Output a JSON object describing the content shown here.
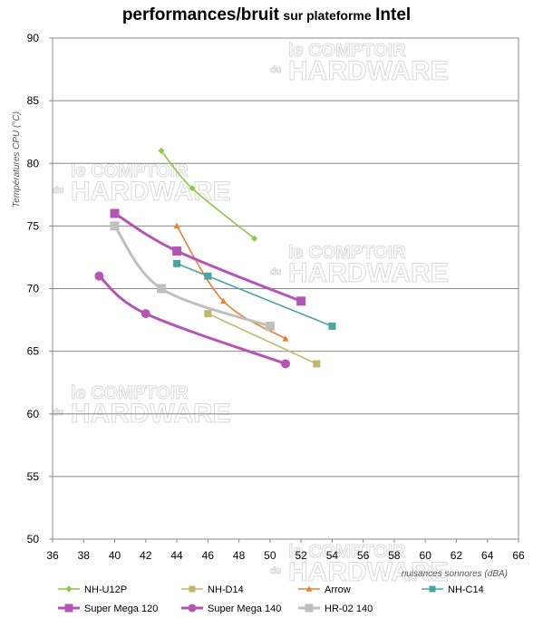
{
  "chart_data": {
    "type": "line",
    "title": {
      "main": "performances/bruit",
      "middle": "sur plateforme",
      "end": "Intel"
    },
    "xlabel": "nuisances sonnores (dBA)",
    "ylabel": "Températures  CPU (°C)",
    "xlim": [
      36,
      66
    ],
    "ylim": [
      50,
      90
    ],
    "xticks": [
      36,
      38,
      40,
      42,
      44,
      46,
      48,
      50,
      52,
      54,
      56,
      58,
      60,
      62,
      64,
      66
    ],
    "yticks": [
      50,
      55,
      60,
      65,
      70,
      75,
      80,
      85,
      90
    ],
    "grid": "horizontal",
    "legend": "bottom",
    "watermark": {
      "line1": "le COMPTOIR",
      "line2": "HARDWARE",
      "prefix": "du"
    },
    "series": [
      {
        "name": "NH-U12P",
        "color": "#8dc63f",
        "marker": "diamond",
        "thick": false,
        "points": [
          [
            43,
            81
          ],
          [
            45,
            78
          ],
          [
            49,
            74
          ]
        ]
      },
      {
        "name": "NH-D14",
        "color": "#c2b86a",
        "marker": "square",
        "thick": false,
        "points": [
          [
            46,
            68
          ],
          [
            53,
            64
          ]
        ]
      },
      {
        "name": "Arrow",
        "color": "#ed7d31",
        "marker": "triangle",
        "thick": false,
        "points": [
          [
            44,
            75
          ],
          [
            47,
            69
          ],
          [
            51,
            66
          ]
        ]
      },
      {
        "name": "NH-C14",
        "color": "#4ba3a3",
        "marker": "square",
        "thick": false,
        "points": [
          [
            44,
            72
          ],
          [
            46,
            71
          ],
          [
            54,
            67
          ]
        ]
      },
      {
        "name": "Super Mega 120",
        "color": "#b554b5",
        "marker": "square",
        "thick": true,
        "points": [
          [
            40,
            76
          ],
          [
            44,
            73
          ],
          [
            52,
            69
          ]
        ]
      },
      {
        "name": "Super Mega 140",
        "color": "#b554b5",
        "marker": "circle",
        "thick": true,
        "points": [
          [
            39,
            71
          ],
          [
            42,
            68
          ],
          [
            51,
            64
          ]
        ]
      },
      {
        "name": "HR-02 140",
        "color": "#bfbfbf",
        "marker": "square",
        "thick": true,
        "points": [
          [
            40,
            75
          ],
          [
            43,
            70
          ],
          [
            50,
            67
          ]
        ]
      }
    ]
  }
}
